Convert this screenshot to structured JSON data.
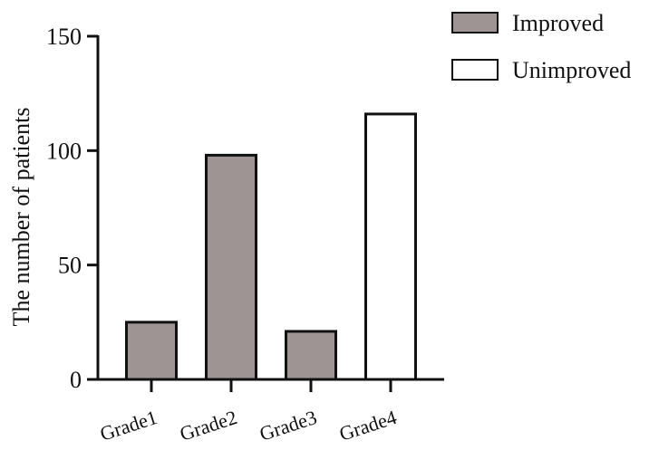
{
  "chart_data": {
    "type": "bar",
    "categories": [
      "Grade1",
      "Grade2",
      "Grade3",
      "Grade4"
    ],
    "values": [
      25,
      98,
      21,
      116
    ],
    "bar_groups": [
      "Improved",
      "Improved",
      "Improved",
      "Unimproved"
    ],
    "ylabel": "The number of patients",
    "xlabel": "",
    "ylim": [
      0,
      150
    ],
    "yticks": [
      0,
      50,
      100,
      150
    ],
    "grid": false,
    "legend_position": "top-right",
    "legend": [
      {
        "name": "Improved",
        "color": "#9e9494"
      },
      {
        "name": "Unimproved",
        "color": "#ffffff"
      }
    ]
  }
}
